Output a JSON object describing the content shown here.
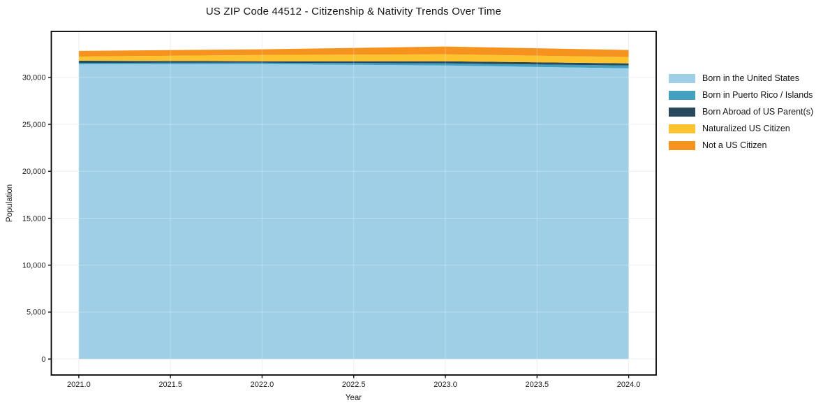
{
  "title": "US ZIP Code 44512 - Citizenship & Nativity Trends Over Time",
  "chart_data": {
    "type": "area",
    "stacked": true,
    "title": "US ZIP Code 44512 - Citizenship & Nativity Trends Over Time",
    "xlabel": "Year",
    "ylabel": "Population",
    "x": [
      2021,
      2022,
      2023,
      2024
    ],
    "series": [
      {
        "name": "Born in the United States",
        "color": "#9FCFE6",
        "values": [
          31400,
          31420,
          31270,
          30970
        ]
      },
      {
        "name": "Born in Puerto Rico / Islands",
        "color": "#42A0C0",
        "values": [
          150,
          150,
          225,
          300
        ]
      },
      {
        "name": "Born Abroad of US Parent(s)",
        "color": "#28495C",
        "values": [
          225,
          150,
          225,
          225
        ]
      },
      {
        "name": "Naturalized US Citizen",
        "color": "#FCC32F",
        "values": [
          450,
          675,
          750,
          675
        ]
      },
      {
        "name": "Not a US Citizen",
        "color": "#F6931E",
        "values": [
          600,
          600,
          825,
          750
        ]
      }
    ],
    "xlim": [
      2020.85,
      2024.15
    ],
    "ylim": [
      -1700,
      34900
    ],
    "x_ticks": [
      {
        "v": 2021.0,
        "label": "2021.0"
      },
      {
        "v": 2021.5,
        "label": "2021.5"
      },
      {
        "v": 2022.0,
        "label": "2022.0"
      },
      {
        "v": 2022.5,
        "label": "2022.5"
      },
      {
        "v": 2023.0,
        "label": "2023.0"
      },
      {
        "v": 2023.5,
        "label": "2023.5"
      },
      {
        "v": 2024.0,
        "label": "2024.0"
      }
    ],
    "y_ticks": [
      {
        "v": 0,
        "label": "0"
      },
      {
        "v": 5000,
        "label": "5,000"
      },
      {
        "v": 10000,
        "label": "10,000"
      },
      {
        "v": 15000,
        "label": "15,000"
      },
      {
        "v": 20000,
        "label": "20,000"
      },
      {
        "v": 25000,
        "label": "25,000"
      },
      {
        "v": 30000,
        "label": "30,000"
      }
    ],
    "grid": true,
    "legend_position": "right-outside"
  },
  "colors": {
    "grid": "#e9e9e9",
    "spine": "#000000",
    "tick_text": "#1a1a1a"
  }
}
